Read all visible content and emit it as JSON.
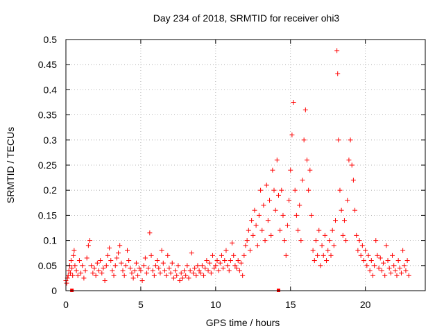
{
  "chart_data": {
    "type": "scatter",
    "title": "Day 234 of 2018, SRMTID for receiver ohi3",
    "xlabel": "GPS time / hours",
    "ylabel": "SRMTID / TECUs",
    "xlim": [
      0,
      24
    ],
    "ylim": [
      0,
      0.5
    ],
    "grid": true,
    "marker": "+",
    "marker_color": "#ff0000",
    "x_ticks": [
      {
        "value": 0,
        "label": "0"
      },
      {
        "value": 5,
        "label": "5"
      },
      {
        "value": 10,
        "label": "10"
      },
      {
        "value": 15,
        "label": "15"
      },
      {
        "value": 20,
        "label": "20"
      }
    ],
    "y_ticks": [
      {
        "value": 0,
        "label": "0"
      },
      {
        "value": 0.05,
        "label": "0.05"
      },
      {
        "value": 0.1,
        "label": "0.1"
      },
      {
        "value": 0.15,
        "label": "0.15"
      },
      {
        "value": 0.2,
        "label": "0.2"
      },
      {
        "value": 0.25,
        "label": "0.25"
      },
      {
        "value": 0.3,
        "label": "0.3"
      },
      {
        "value": 0.35,
        "label": "0.35"
      },
      {
        "value": 0.4,
        "label": "0.4"
      },
      {
        "value": 0.45,
        "label": "0.45"
      },
      {
        "value": 0.5,
        "label": "0.5"
      }
    ],
    "series": [
      {
        "name": "SRMTID",
        "points": [
          [
            0.0,
            0.02
          ],
          [
            0.05,
            0.015
          ],
          [
            0.1,
            0.025
          ],
          [
            0.15,
            0.03
          ],
          [
            0.2,
            0.04
          ],
          [
            0.25,
            0.05
          ],
          [
            0.3,
            0.035
          ],
          [
            0.35,
            0.06
          ],
          [
            0.4,
            0.045
          ],
          [
            0.45,
            0.03
          ],
          [
            0.5,
            0.07
          ],
          [
            0.55,
            0.08
          ],
          [
            0.6,
            0.05
          ],
          [
            0.7,
            0.04
          ],
          [
            0.8,
            0.03
          ],
          [
            0.9,
            0.06
          ],
          [
            1.0,
            0.035
          ],
          [
            1.1,
            0.05
          ],
          [
            1.2,
            0.025
          ],
          [
            1.3,
            0.04
          ],
          [
            1.4,
            0.065
          ],
          [
            1.5,
            0.09
          ],
          [
            1.6,
            0.1
          ],
          [
            1.7,
            0.05
          ],
          [
            1.8,
            0.035
          ],
          [
            1.9,
            0.045
          ],
          [
            2.0,
            0.03
          ],
          [
            2.1,
            0.055
          ],
          [
            2.2,
            0.04
          ],
          [
            2.3,
            0.06
          ],
          [
            2.4,
            0.035
          ],
          [
            2.5,
            0.045
          ],
          [
            2.6,
            0.02
          ],
          [
            2.7,
            0.05
          ],
          [
            2.8,
            0.07
          ],
          [
            2.9,
            0.085
          ],
          [
            3.0,
            0.06
          ],
          [
            3.1,
            0.04
          ],
          [
            3.2,
            0.03
          ],
          [
            3.3,
            0.05
          ],
          [
            3.4,
            0.065
          ],
          [
            3.5,
            0.075
          ],
          [
            3.6,
            0.09
          ],
          [
            3.7,
            0.055
          ],
          [
            3.8,
            0.04
          ],
          [
            3.9,
            0.03
          ],
          [
            4.0,
            0.05
          ],
          [
            4.1,
            0.08
          ],
          [
            4.2,
            0.06
          ],
          [
            4.3,
            0.045
          ],
          [
            4.4,
            0.035
          ],
          [
            4.5,
            0.025
          ],
          [
            4.6,
            0.04
          ],
          [
            4.7,
            0.055
          ],
          [
            4.8,
            0.03
          ],
          [
            4.9,
            0.045
          ],
          [
            5.0,
            0.04
          ],
          [
            5.1,
            0.02
          ],
          [
            5.2,
            0.05
          ],
          [
            5.3,
            0.065
          ],
          [
            5.4,
            0.035
          ],
          [
            5.5,
            0.045
          ],
          [
            5.6,
            0.115
          ],
          [
            5.7,
            0.07
          ],
          [
            5.8,
            0.04
          ],
          [
            5.9,
            0.03
          ],
          [
            6.0,
            0.05
          ],
          [
            6.1,
            0.06
          ],
          [
            6.2,
            0.045
          ],
          [
            6.3,
            0.035
          ],
          [
            6.4,
            0.08
          ],
          [
            6.5,
            0.055
          ],
          [
            6.6,
            0.04
          ],
          [
            6.7,
            0.03
          ],
          [
            6.8,
            0.07
          ],
          [
            6.9,
            0.045
          ],
          [
            7.0,
            0.035
          ],
          [
            7.1,
            0.055
          ],
          [
            7.2,
            0.025
          ],
          [
            7.3,
            0.04
          ],
          [
            7.4,
            0.03
          ],
          [
            7.5,
            0.05
          ],
          [
            7.6,
            0.02
          ],
          [
            7.7,
            0.035
          ],
          [
            7.8,
            0.025
          ],
          [
            7.9,
            0.04
          ],
          [
            8.0,
            0.03
          ],
          [
            8.1,
            0.05
          ],
          [
            8.2,
            0.025
          ],
          [
            8.3,
            0.04
          ],
          [
            8.4,
            0.075
          ],
          [
            8.5,
            0.035
          ],
          [
            8.6,
            0.045
          ],
          [
            8.7,
            0.03
          ],
          [
            8.8,
            0.05
          ],
          [
            8.9,
            0.04
          ],
          [
            9.0,
            0.035
          ],
          [
            9.1,
            0.05
          ],
          [
            9.2,
            0.03
          ],
          [
            9.3,
            0.045
          ],
          [
            9.4,
            0.06
          ],
          [
            9.5,
            0.04
          ],
          [
            9.6,
            0.055
          ],
          [
            9.7,
            0.035
          ],
          [
            9.8,
            0.07
          ],
          [
            9.9,
            0.045
          ],
          [
            10.0,
            0.05
          ],
          [
            10.1,
            0.06
          ],
          [
            10.2,
            0.04
          ],
          [
            10.3,
            0.055
          ],
          [
            10.4,
            0.07
          ],
          [
            10.5,
            0.045
          ],
          [
            10.6,
            0.06
          ],
          [
            10.7,
            0.08
          ],
          [
            10.8,
            0.05
          ],
          [
            10.9,
            0.04
          ],
          [
            11.0,
            0.06
          ],
          [
            11.1,
            0.095
          ],
          [
            11.2,
            0.07
          ],
          [
            11.3,
            0.05
          ],
          [
            11.4,
            0.045
          ],
          [
            11.5,
            0.06
          ],
          [
            11.6,
            0.04
          ],
          [
            11.7,
            0.055
          ],
          [
            11.8,
            0.03
          ],
          [
            11.9,
            0.07
          ],
          [
            12.0,
            0.09
          ],
          [
            12.1,
            0.1
          ],
          [
            12.2,
            0.12
          ],
          [
            12.3,
            0.08
          ],
          [
            12.4,
            0.14
          ],
          [
            12.5,
            0.11
          ],
          [
            12.6,
            0.16
          ],
          [
            12.7,
            0.13
          ],
          [
            12.8,
            0.09
          ],
          [
            12.9,
            0.15
          ],
          [
            13.0,
            0.2
          ],
          [
            13.1,
            0.12
          ],
          [
            13.2,
            0.17
          ],
          [
            13.3,
            0.1
          ],
          [
            13.4,
            0.21
          ],
          [
            13.5,
            0.14
          ],
          [
            13.6,
            0.18
          ],
          [
            13.7,
            0.11
          ],
          [
            13.8,
            0.24
          ],
          [
            13.9,
            0.2
          ],
          [
            14.0,
            0.16
          ],
          [
            14.1,
            0.26
          ],
          [
            14.2,
            0.19
          ],
          [
            14.3,
            0.12
          ],
          [
            14.4,
            0.2
          ],
          [
            14.5,
            0.15
          ],
          [
            14.6,
            0.1
          ],
          [
            14.7,
            0.07
          ],
          [
            14.8,
            0.13
          ],
          [
            14.9,
            0.18
          ],
          [
            15.0,
            0.24
          ],
          [
            15.1,
            0.31
          ],
          [
            15.2,
            0.375
          ],
          [
            15.3,
            0.2
          ],
          [
            15.4,
            0.15
          ],
          [
            15.5,
            0.12
          ],
          [
            15.6,
            0.17
          ],
          [
            15.7,
            0.1
          ],
          [
            15.8,
            0.22
          ],
          [
            15.9,
            0.3
          ],
          [
            16.0,
            0.36
          ],
          [
            16.1,
            0.26
          ],
          [
            16.2,
            0.2
          ],
          [
            16.3,
            0.24
          ],
          [
            16.4,
            0.15
          ],
          [
            16.5,
            0.08
          ],
          [
            16.6,
            0.06
          ],
          [
            16.7,
            0.1
          ],
          [
            16.8,
            0.07
          ],
          [
            16.9,
            0.12
          ],
          [
            17.0,
            0.05
          ],
          [
            17.1,
            0.09
          ],
          [
            17.2,
            0.07
          ],
          [
            17.3,
            0.11
          ],
          [
            17.4,
            0.06
          ],
          [
            17.5,
            0.08
          ],
          [
            17.6,
            0.1
          ],
          [
            17.7,
            0.07
          ],
          [
            17.8,
            0.12
          ],
          [
            17.9,
            0.09
          ],
          [
            18.0,
            0.14
          ],
          [
            18.1,
            0.478
          ],
          [
            18.15,
            0.432
          ],
          [
            18.2,
            0.3
          ],
          [
            18.3,
            0.2
          ],
          [
            18.4,
            0.16
          ],
          [
            18.5,
            0.11
          ],
          [
            18.6,
            0.14
          ],
          [
            18.7,
            0.1
          ],
          [
            18.8,
            0.18
          ],
          [
            18.9,
            0.26
          ],
          [
            19.0,
            0.3
          ],
          [
            19.1,
            0.25
          ],
          [
            19.2,
            0.22
          ],
          [
            19.3,
            0.16
          ],
          [
            19.4,
            0.11
          ],
          [
            19.5,
            0.08
          ],
          [
            19.6,
            0.1
          ],
          [
            19.7,
            0.07
          ],
          [
            19.8,
            0.09
          ],
          [
            19.9,
            0.06
          ],
          [
            20.0,
            0.08
          ],
          [
            20.1,
            0.05
          ],
          [
            20.2,
            0.07
          ],
          [
            20.3,
            0.04
          ],
          [
            20.4,
            0.06
          ],
          [
            20.5,
            0.03
          ],
          [
            20.6,
            0.05
          ],
          [
            20.7,
            0.1
          ],
          [
            20.8,
            0.07
          ],
          [
            20.9,
            0.045
          ],
          [
            21.0,
            0.065
          ],
          [
            21.1,
            0.04
          ],
          [
            21.2,
            0.055
          ],
          [
            21.3,
            0.03
          ],
          [
            21.4,
            0.09
          ],
          [
            21.5,
            0.06
          ],
          [
            21.6,
            0.045
          ],
          [
            21.7,
            0.035
          ],
          [
            21.8,
            0.07
          ],
          [
            21.9,
            0.05
          ],
          [
            22.0,
            0.04
          ],
          [
            22.1,
            0.03
          ],
          [
            22.2,
            0.06
          ],
          [
            22.3,
            0.045
          ],
          [
            22.4,
            0.035
          ],
          [
            22.5,
            0.08
          ],
          [
            22.6,
            0.05
          ],
          [
            22.7,
            0.04
          ],
          [
            22.8,
            0.06
          ],
          [
            22.9,
            0.03
          ]
        ]
      }
    ],
    "markers_on_axis": [
      0.4,
      14.2
    ]
  }
}
